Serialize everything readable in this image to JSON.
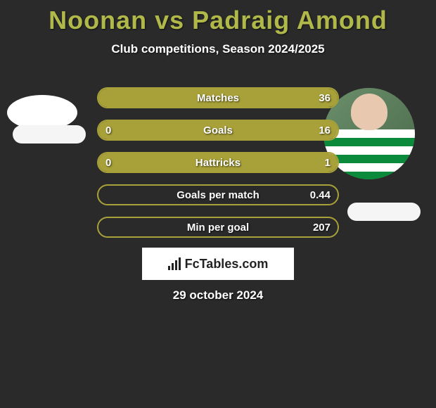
{
  "title": "Noonan vs Padraig Amond",
  "title_color": "#b0b84a",
  "subtitle": "Club competitions, Season 2024/2025",
  "subtitle_color": "#ffffff",
  "background_color": "#2a2a2a",
  "date": "29 october 2024",
  "logo_text": "FcTables.com",
  "bars": [
    {
      "label": "Matches",
      "left": "",
      "right": "36",
      "fill_pct": 100,
      "border": "#a8a038",
      "fill": "#a8a038"
    },
    {
      "label": "Goals",
      "left": "0",
      "right": "16",
      "fill_pct": 100,
      "border": "#a8a038",
      "fill": "#a8a038"
    },
    {
      "label": "Hattricks",
      "left": "0",
      "right": "1",
      "fill_pct": 100,
      "border": "#a8a038",
      "fill": "#a8a038"
    },
    {
      "label": "Goals per match",
      "left": "",
      "right": "0.44",
      "fill_pct": 0,
      "border": "#a8a038",
      "fill": "#a8a038"
    },
    {
      "label": "Min per goal",
      "left": "",
      "right": "207",
      "fill_pct": 0,
      "border": "#a8a038",
      "fill": "#a8a038"
    }
  ],
  "bar_styling": {
    "height": 30,
    "border_radius": 15,
    "border_width": 2,
    "gap": 16,
    "label_fontsize": 15,
    "value_fontsize": 15,
    "text_color": "#ffffff"
  },
  "avatars": {
    "left": {
      "shape": "ellipse",
      "bg": "#ffffff"
    },
    "right": {
      "shape": "circle",
      "bg_top": "#5a7a5a",
      "jersey_stripes": [
        "#ffffff",
        "#0a8a3a"
      ]
    }
  },
  "name_pill_color": "#f5f5f5",
  "logo_box": {
    "bg": "#ffffff",
    "text_color": "#222222",
    "icon_color": "#222222"
  }
}
